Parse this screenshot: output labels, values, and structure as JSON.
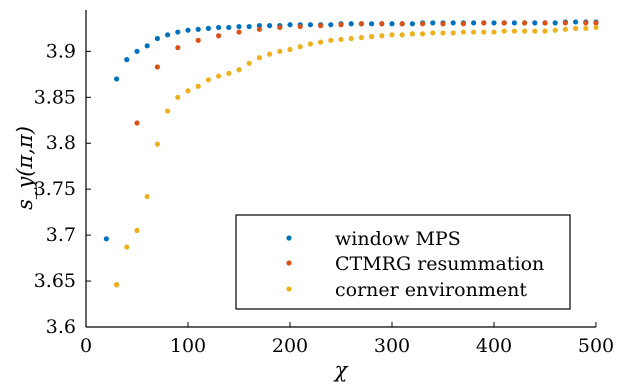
{
  "chart_data": {
    "type": "scatter",
    "xlabel": "χ",
    "ylabel": "s_y(π,π)",
    "xlim": [
      0,
      500
    ],
    "ylim": [
      3.6,
      3.945
    ],
    "xticks": [
      "0",
      "100",
      "200",
      "300",
      "400",
      "500"
    ],
    "yticks": [
      "3.6",
      "3.65",
      "3.7",
      "3.75",
      "3.8",
      "3.85",
      "3.9"
    ],
    "grid": false,
    "legend_position": "bottom-right",
    "series": [
      {
        "name": "window MPS",
        "color": "#0072BD",
        "x": [
          20,
          30,
          40,
          50,
          60,
          70,
          80,
          90,
          100,
          110,
          120,
          130,
          140,
          150,
          160,
          170,
          180,
          190,
          200,
          210,
          220,
          230,
          240,
          250,
          260,
          270,
          280,
          290,
          300,
          310,
          320,
          330,
          340,
          350,
          360,
          370,
          380,
          390,
          400,
          410,
          420,
          430,
          440,
          450,
          460,
          470,
          480,
          490,
          500
        ],
        "y": [
          3.696,
          3.87,
          3.891,
          3.9,
          3.906,
          3.914,
          3.918,
          3.921,
          3.923,
          3.924,
          3.925,
          3.926,
          3.926,
          3.927,
          3.927,
          3.928,
          3.928,
          3.928,
          3.929,
          3.929,
          3.929,
          3.929,
          3.929,
          3.93,
          3.93,
          3.93,
          3.93,
          3.93,
          3.93,
          3.93,
          3.93,
          3.931,
          3.931,
          3.931,
          3.931,
          3.931,
          3.931,
          3.931,
          3.931,
          3.931,
          3.931,
          3.931,
          3.931,
          3.931,
          3.931,
          3.932,
          3.932,
          3.932,
          3.932
        ]
      },
      {
        "name": "CTMRG resummation",
        "color": "#D95319",
        "x": [
          30,
          50,
          70,
          90,
          110,
          130,
          150,
          170,
          190,
          210,
          230,
          250,
          270,
          290,
          310,
          330,
          350,
          370,
          390,
          410,
          430,
          450,
          470,
          490,
          500
        ],
        "y": [
          3.646,
          3.822,
          3.883,
          3.904,
          3.912,
          3.917,
          3.921,
          3.924,
          3.926,
          3.927,
          3.928,
          3.929,
          3.93,
          3.93,
          3.93,
          3.93,
          3.93,
          3.93,
          3.931,
          3.931,
          3.931,
          3.931,
          3.931,
          3.931,
          3.931
        ]
      },
      {
        "name": "corner environment",
        "color": "#EDB120",
        "x": [
          30,
          40,
          50,
          60,
          70,
          80,
          90,
          100,
          110,
          120,
          130,
          140,
          150,
          160,
          170,
          180,
          190,
          200,
          210,
          220,
          230,
          240,
          250,
          260,
          270,
          280,
          290,
          300,
          310,
          320,
          330,
          340,
          350,
          360,
          370,
          380,
          390,
          400,
          410,
          420,
          430,
          440,
          450,
          460,
          470,
          480,
          490,
          500
        ],
        "y": [
          3.646,
          3.687,
          3.705,
          3.742,
          3.799,
          3.835,
          3.85,
          3.857,
          3.862,
          3.869,
          3.873,
          3.876,
          3.88,
          3.887,
          3.893,
          3.897,
          3.9,
          3.902,
          3.905,
          3.908,
          3.91,
          3.912,
          3.913,
          3.914,
          3.915,
          3.916,
          3.917,
          3.918,
          3.918,
          3.919,
          3.919,
          3.92,
          3.92,
          3.92,
          3.921,
          3.921,
          3.921,
          3.921,
          3.922,
          3.922,
          3.922,
          3.922,
          3.922,
          3.923,
          3.924,
          3.925,
          3.925,
          3.926
        ]
      }
    ]
  }
}
